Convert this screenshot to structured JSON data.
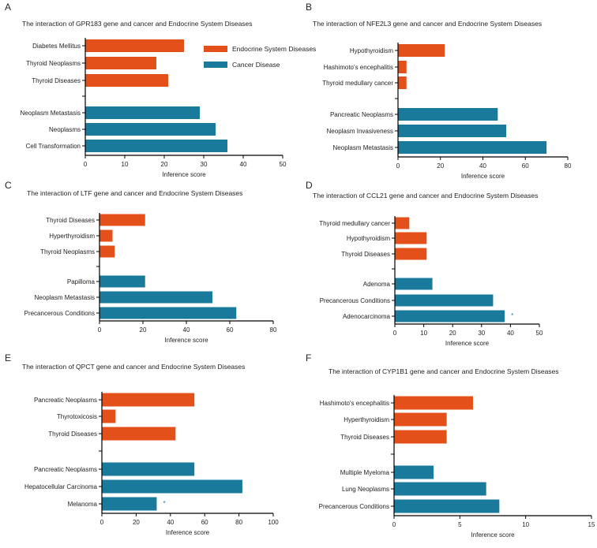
{
  "colors": {
    "endocrine": "#E4501A",
    "cancer": "#1A7A9B",
    "axis": "#000000"
  },
  "legend": {
    "endocrine_label": "Endocrine System Diseases",
    "cancer_label": "Cancer Disease"
  },
  "chart_data": [
    {
      "panel": "A",
      "type": "bar",
      "orientation": "horizontal",
      "title": "The interaction of GPR183 gene and cancer and Endocrine System Diseases",
      "xlabel": "Inference score",
      "xlim": [
        0,
        50
      ],
      "xticks": [
        0,
        10,
        20,
        30,
        40,
        50
      ],
      "endocrine": {
        "categories": [
          "Diabetes Mellitus",
          "Thyroid Neoplasms",
          "Thyroid Diseases"
        ],
        "values": [
          25,
          18,
          21
        ]
      },
      "cancer": {
        "categories": [
          "Neoplasm Metastasis",
          "Neoplasms",
          "Cell Transformation"
        ],
        "values": [
          29,
          33,
          36
        ]
      },
      "annotation": ""
    },
    {
      "panel": "B",
      "type": "bar",
      "orientation": "horizontal",
      "title": "The interaction of NFE2L3 gene and cancer and Endocrine System Diseases",
      "xlabel": "Inference score",
      "xlim": [
        0,
        80
      ],
      "xticks": [
        0,
        20,
        40,
        60,
        80
      ],
      "endocrine": {
        "categories": [
          "Hypothyroidism",
          "Hashimoto's encephalitis",
          "Thyroid medullary cancer"
        ],
        "values": [
          22,
          4,
          4
        ]
      },
      "cancer": {
        "categories": [
          "Pancreatic Neoplasms",
          "Neoplasm Invasiveness",
          "Neoplasm Metastasis"
        ],
        "values": [
          47,
          51,
          70
        ]
      },
      "annotation": ""
    },
    {
      "panel": "C",
      "type": "bar",
      "orientation": "horizontal",
      "title": "The interaction of LTF gene and cancer and Endocrine System Diseases",
      "xlabel": "Inference score",
      "xlim": [
        0,
        80
      ],
      "xticks": [
        0,
        20,
        40,
        60,
        80
      ],
      "endocrine": {
        "categories": [
          "Thyroid Diseases",
          "Hyperthyroidism",
          "Thyroid Neoplasms"
        ],
        "values": [
          21,
          6,
          7
        ]
      },
      "cancer": {
        "categories": [
          "Papilloma",
          "Neoplasm Metastasis",
          "Precancerous Conditions"
        ],
        "values": [
          21,
          52,
          63
        ]
      },
      "annotation": ""
    },
    {
      "panel": "D",
      "type": "bar",
      "orientation": "horizontal",
      "title": "The interaction of CCL21 gene and cancer and Endocrine System Diseases",
      "xlabel": "Inference score",
      "xlim": [
        0,
        50
      ],
      "xticks": [
        0,
        10,
        20,
        30,
        40,
        50
      ],
      "endocrine": {
        "categories": [
          "Thyroid medullary cancer",
          "Hypothyroidism",
          "Thyroid Diseases"
        ],
        "values": [
          5,
          11,
          11
        ]
      },
      "cancer": {
        "categories": [
          "Adenoma",
          "Precancerous Conditions",
          "Adenocarcinoma"
        ],
        "values": [
          13,
          34,
          38
        ]
      },
      "annotation": "*"
    },
    {
      "panel": "E",
      "type": "bar",
      "orientation": "horizontal",
      "title": "The interaction of QPCT gene and cancer and Endocrine System Diseases",
      "xlabel": "Inference score",
      "xlim": [
        0,
        100
      ],
      "xticks": [
        0,
        20,
        40,
        60,
        80,
        100
      ],
      "endocrine": {
        "categories": [
          "Pancreatic Neoplasms",
          "Thyrotoxicosis",
          "Thyroid Diseases"
        ],
        "values": [
          54,
          8,
          43
        ]
      },
      "cancer": {
        "categories": [
          "Pancreatic Neoplasms",
          "Hepatocellular Carcinoma",
          "Melanoma"
        ],
        "values": [
          54,
          82,
          32
        ]
      },
      "annotation": "*"
    },
    {
      "panel": "F",
      "type": "bar",
      "orientation": "horizontal",
      "title": "The interaction of CYP1B1 gene and cancer and Endocrine System Diseases",
      "xlabel": "Inference score",
      "xlim": [
        0,
        15
      ],
      "xticks": [
        0,
        5,
        10,
        15
      ],
      "endocrine": {
        "categories": [
          "Hashimoto's encephalitis",
          "Hyperthyroidism",
          "Thyroid Diseases"
        ],
        "values": [
          6,
          4,
          4
        ]
      },
      "cancer": {
        "categories": [
          "Multiple Myeloma",
          "Lung Neoplasms",
          "Precancerous Conditions"
        ],
        "values": [
          3,
          7,
          8
        ]
      },
      "annotation": ""
    }
  ]
}
